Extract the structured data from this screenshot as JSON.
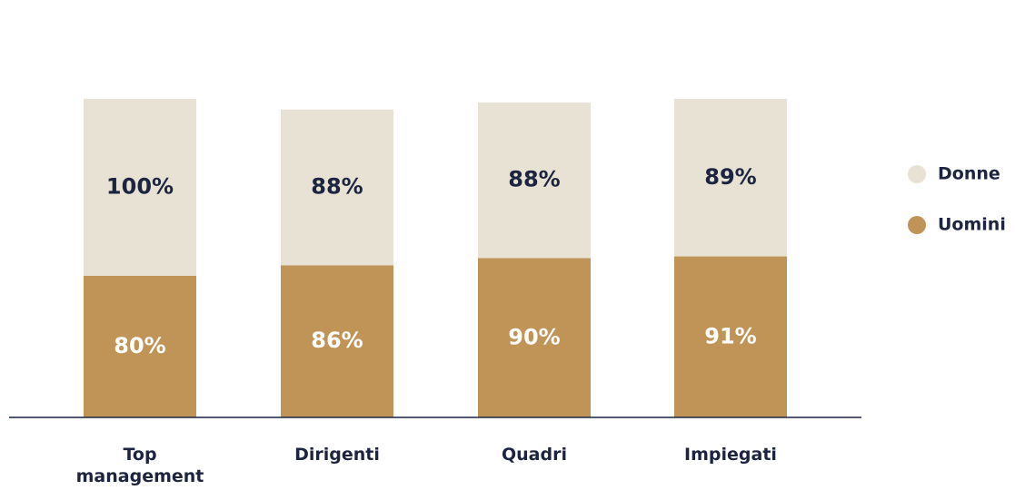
{
  "chart_data": {
    "type": "bar",
    "stacked": true,
    "categories": [
      "Top management",
      "Dirigenti",
      "Quadri",
      "Impiegati"
    ],
    "category_lines": [
      [
        "Top",
        "management"
      ],
      [
        "Dirigenti"
      ],
      [
        "Quadri"
      ],
      [
        "Impiegati"
      ]
    ],
    "series": [
      {
        "name": "Uomini",
        "values": [
          80,
          86,
          90,
          91
        ],
        "labels": [
          "80%",
          "86%",
          "90%",
          "91%"
        ],
        "color": "#bf9456",
        "label_color": "#ffffff"
      },
      {
        "name": "Donne",
        "values": [
          100,
          88,
          88,
          89
        ],
        "labels": [
          "100%",
          "88%",
          "88%",
          "89%"
        ],
        "color": "#e8e2d4",
        "label_color": "#1c2440"
      }
    ],
    "legend": {
      "position": "right",
      "order": [
        "Donne",
        "Uomini"
      ]
    },
    "axis_color": "#1c2440"
  }
}
